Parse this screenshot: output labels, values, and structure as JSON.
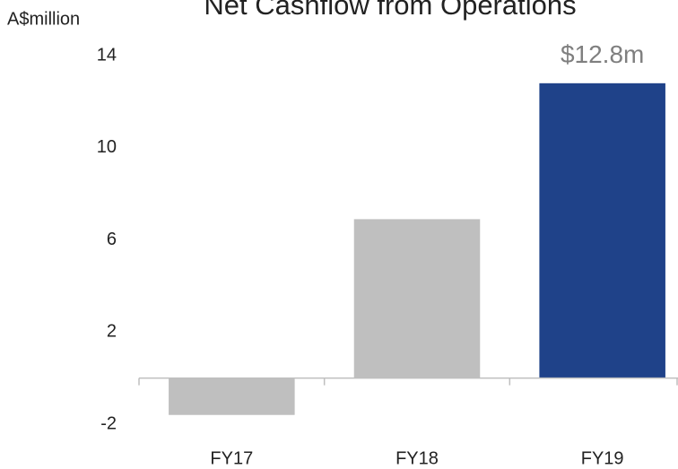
{
  "chart_data": {
    "type": "bar",
    "title": "Net Cashflow from Operations",
    "y_label": "A$million",
    "categories": [
      "FY17",
      "FY18",
      "FY19"
    ],
    "values": [
      -1.6,
      6.9,
      12.8
    ],
    "value_labels": [
      null,
      null,
      "$12.8m"
    ],
    "colors": [
      "#bfbfbf",
      "#bfbfbf",
      "#1f4289"
    ],
    "ylim": [
      -2,
      14
    ],
    "yticks": [
      -2,
      2,
      6,
      10,
      14
    ],
    "grid": false
  }
}
